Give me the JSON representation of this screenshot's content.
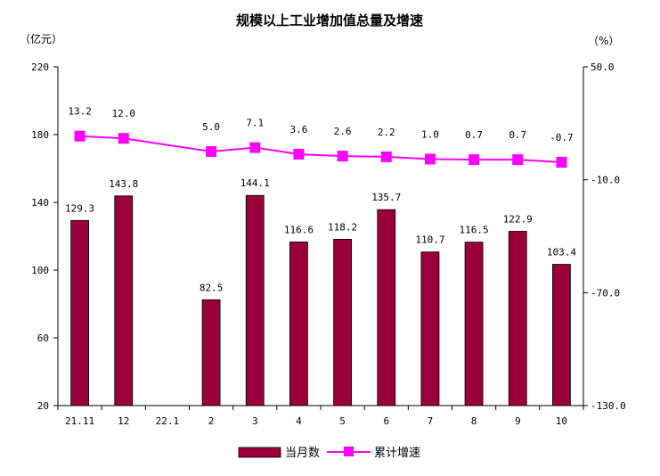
{
  "chart_data": {
    "type": "bar+line",
    "title": "规模以上工业增加值总量及增速",
    "categories": [
      "21.11",
      "12",
      "22.1",
      "2",
      "3",
      "4",
      "5",
      "6",
      "7",
      "8",
      "9",
      "10"
    ],
    "left_axis": {
      "unit": "（亿元）",
      "ylim": [
        20,
        220
      ],
      "ticks": [
        "20",
        "60",
        "100",
        "140",
        "180",
        "220"
      ]
    },
    "right_axis": {
      "unit": "（%）",
      "ylim": [
        -130,
        50
      ],
      "ticks": [
        "-130.0",
        "-70.0",
        "-10.0",
        "50.0"
      ]
    },
    "series": [
      {
        "name": "当月数",
        "kind": "bar",
        "axis": "left",
        "color": "#99003a",
        "values": [
          129.3,
          143.8,
          null,
          82.5,
          144.1,
          116.6,
          118.2,
          135.7,
          110.7,
          116.5,
          122.9,
          103.4
        ],
        "labels": [
          "129.3",
          "143.8",
          "",
          "82.5",
          "144.1",
          "116.6",
          "118.2",
          "135.7",
          "110.7",
          "116.5",
          "122.9",
          "103.4"
        ]
      },
      {
        "name": "累计增速",
        "kind": "line",
        "axis": "right",
        "color": "#ff00ff",
        "values": [
          13.2,
          12.0,
          null,
          5.0,
          7.1,
          3.6,
          2.6,
          2.2,
          1.0,
          0.7,
          0.7,
          -0.7
        ],
        "labels": [
          "13.2",
          "12.0",
          "",
          "5.0",
          "7.1",
          "3.6",
          "2.6",
          "2.2",
          "1.0",
          "0.7",
          "0.7",
          "-0.7"
        ]
      }
    ],
    "legend_position": "bottom",
    "grid": false
  }
}
